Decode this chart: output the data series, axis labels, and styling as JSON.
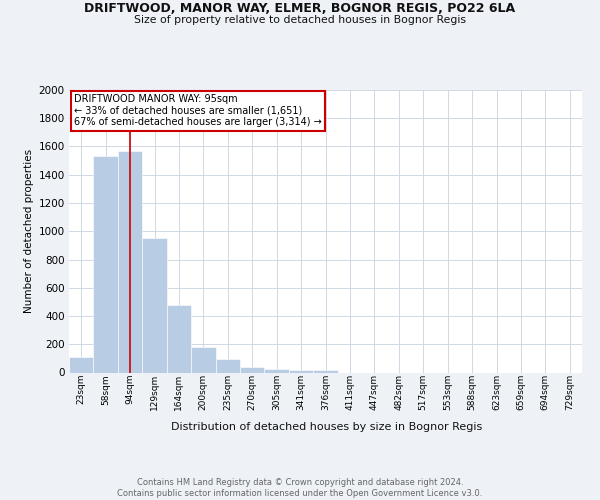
{
  "title_line1": "DRIFTWOOD, MANOR WAY, ELMER, BOGNOR REGIS, PO22 6LA",
  "title_line2": "Size of property relative to detached houses in Bognor Regis",
  "xlabel": "Distribution of detached houses by size in Bognor Regis",
  "ylabel": "Number of detached properties",
  "categories": [
    "23sqm",
    "58sqm",
    "94sqm",
    "129sqm",
    "164sqm",
    "200sqm",
    "235sqm",
    "270sqm",
    "305sqm",
    "341sqm",
    "376sqm",
    "411sqm",
    "447sqm",
    "482sqm",
    "517sqm",
    "553sqm",
    "588sqm",
    "623sqm",
    "659sqm",
    "694sqm",
    "729sqm"
  ],
  "values": [
    110,
    1530,
    1565,
    950,
    475,
    180,
    95,
    38,
    28,
    15,
    20,
    0,
    0,
    0,
    0,
    0,
    0,
    0,
    0,
    0,
    0
  ],
  "bar_color": "#b8cce4",
  "marker_color": "#cc0000",
  "annotation_box_edge": "#cc0000",
  "marker_label_line1": "DRIFTWOOD MANOR WAY: 95sqm",
  "marker_label_line2": "← 33% of detached houses are smaller (1,651)",
  "marker_label_line3": "67% of semi-detached houses are larger (3,314) →",
  "ylim": [
    0,
    2000
  ],
  "yticks": [
    0,
    200,
    400,
    600,
    800,
    1000,
    1200,
    1400,
    1600,
    1800,
    2000
  ],
  "footnote_line1": "Contains HM Land Registry data © Crown copyright and database right 2024.",
  "footnote_line2": "Contains public sector information licensed under the Open Government Licence v3.0.",
  "background_color": "#eef2f7",
  "plot_background": "#ffffff",
  "grid_color": "#d0d8e4"
}
